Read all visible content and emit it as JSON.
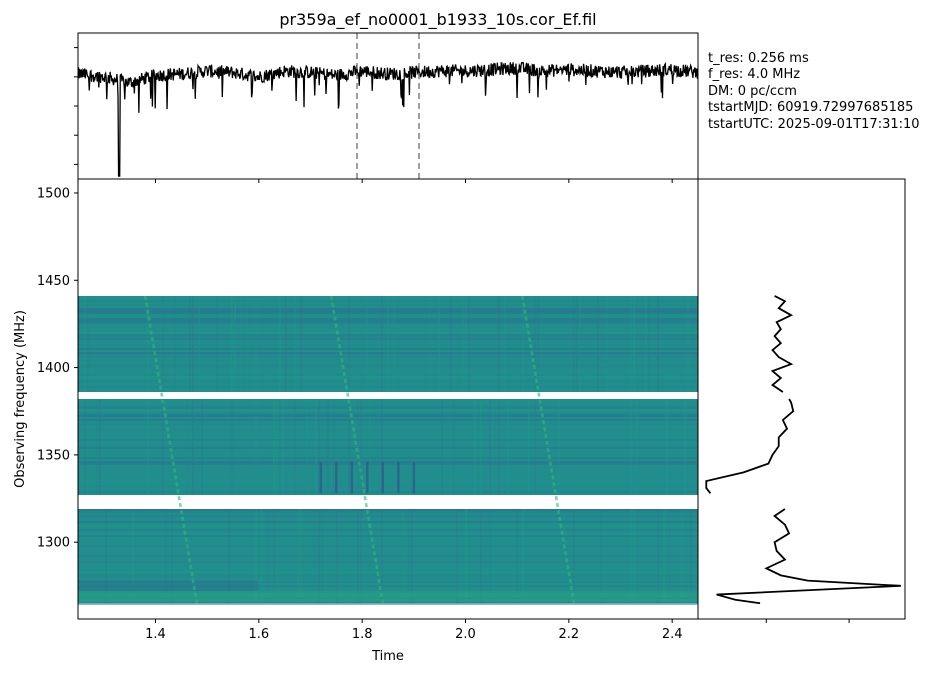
{
  "title": "pr359a_ef_no0001_b1933_10s.cor_Ef.fil",
  "info_lines": [
    "t_res: 0.256 ms",
    "f_res: 4.0 MHz",
    "DM: 0 pc/ccm",
    "tstartMJD: 60919.72997685185",
    "tstartUTC: 2025-09-01T17:31:10"
  ],
  "colors": {
    "waterfall_base": "#218e8d",
    "waterfall_bright": "#35b779",
    "waterfall_dark": "#2a6f8e",
    "line": "#000000",
    "marker": "#808080"
  },
  "chart_data": [
    {
      "panel": "time-series",
      "type": "line",
      "title": "pr359a_ef_no0001_b1933_10s.cor_Ef.fil",
      "xlim": [
        1.25,
        2.45
      ],
      "y_ticklabels": [],
      "vertical_markers": [
        1.79,
        1.91
      ],
      "marker_style": "dashed",
      "series": [
        {
          "sample_x": [
            1.25,
            1.3,
            1.35,
            1.4,
            1.45,
            1.5,
            1.55,
            1.6,
            1.65,
            1.7,
            1.75,
            1.8,
            1.85,
            1.9,
            1.95,
            2.0,
            2.05,
            2.1,
            2.15,
            2.2,
            2.25,
            2.3,
            2.35,
            2.4,
            2.45
          ],
          "sample_y": [
            0.72,
            0.7,
            0.66,
            0.71,
            0.72,
            0.74,
            0.73,
            0.7,
            0.74,
            0.73,
            0.71,
            0.74,
            0.72,
            0.73,
            0.74,
            0.74,
            0.75,
            0.76,
            0.74,
            0.75,
            0.74,
            0.73,
            0.74,
            0.75,
            0.73
          ],
          "minimum": {
            "x": 1.33,
            "y": 0.0
          }
        }
      ]
    },
    {
      "panel": "waterfall",
      "type": "heatmap",
      "xlabel": "Time",
      "ylabel": "Observing frequency (MHz)",
      "xlim": [
        1.25,
        2.45
      ],
      "ylim": [
        1256,
        1508
      ],
      "x_ticks": [
        1.4,
        1.6,
        1.8,
        2.0,
        2.2,
        2.4
      ],
      "x_ticklabels": [
        "1.4",
        "1.6",
        "1.8",
        "2.0",
        "2.2",
        "2.4"
      ],
      "y_ticks": [
        1300,
        1350,
        1400,
        1450,
        1500
      ],
      "y_ticklabels": [
        "1300",
        "1350",
        "1400",
        "1450",
        "1500"
      ],
      "bands": [
        {
          "f_low": 1265,
          "f_high": 1319
        },
        {
          "f_low": 1327,
          "f_high": 1382
        },
        {
          "f_low": 1386,
          "f_high": 1441
        }
      ],
      "pulses": [
        {
          "t_top": 1.38,
          "t_bottom": 1.48
        },
        {
          "t_top": 1.74,
          "t_bottom": 1.84
        },
        {
          "t_top": 2.11,
          "t_bottom": 2.21
        }
      ],
      "dark_lines_time": [
        1.72,
        1.75,
        1.78,
        1.81,
        1.84,
        1.87,
        1.9
      ],
      "dark_lines_freq": [
        1328,
        1346
      ]
    },
    {
      "panel": "spectrum",
      "type": "line",
      "ylim": [
        1256,
        1508
      ],
      "xlim": [
        0,
        10
      ],
      "x_ticklabels": [],
      "y_ticklabels": [],
      "segments": [
        {
          "freq": [
            1386,
            1390,
            1394,
            1398,
            1402,
            1406,
            1410,
            1414,
            1418,
            1422,
            1426,
            1430,
            1434,
            1438,
            1441
          ],
          "value": [
            4.1,
            3.6,
            4.0,
            3.6,
            4.5,
            3.9,
            3.6,
            4.0,
            3.7,
            4.0,
            3.8,
            4.5,
            3.9,
            4.2,
            3.7
          ]
        },
        {
          "freq": [
            1328,
            1331,
            1335,
            1340,
            1345,
            1350,
            1355,
            1360,
            1365,
            1370,
            1375,
            1380,
            1382
          ],
          "value": [
            0.6,
            0.4,
            0.4,
            2.2,
            3.4,
            3.6,
            3.9,
            3.9,
            4.3,
            4.1,
            4.6,
            4.5,
            4.4
          ],
          "note": ""
        },
        {
          "freq": [
            1265,
            1267,
            1270,
            1275,
            1278,
            1281,
            1285,
            1290,
            1295,
            1300,
            1305,
            1310,
            1315,
            1319
          ],
          "value": [
            3.0,
            1.8,
            0.9,
            9.8,
            5.3,
            4.0,
            3.3,
            4.2,
            3.8,
            3.7,
            4.4,
            4.2,
            3.7,
            4.2
          ]
        }
      ]
    }
  ]
}
